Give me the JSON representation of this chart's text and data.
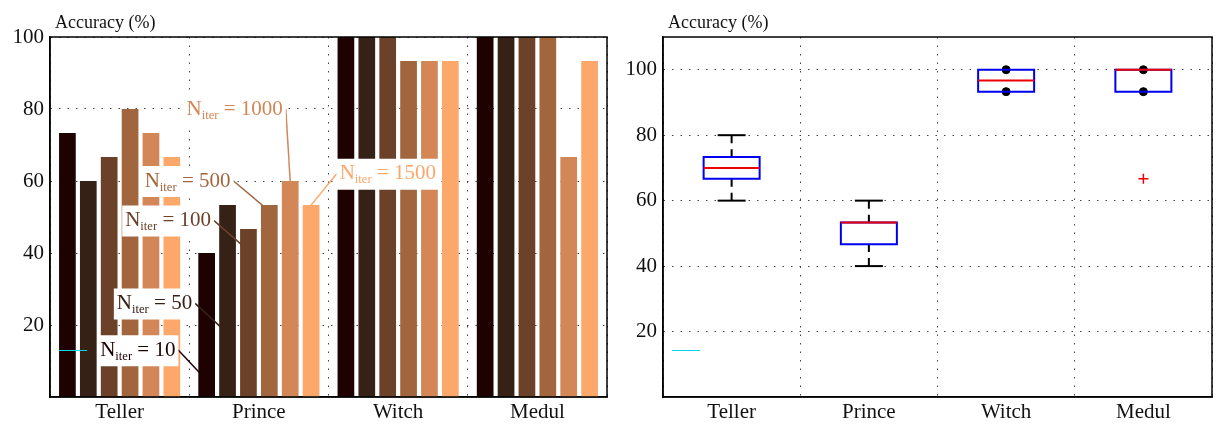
{
  "chart_data": [
    {
      "type": "bar",
      "ylabel": "Accuracy (%)",
      "categories": [
        "Teller",
        "Prince",
        "Witch",
        "Medul"
      ],
      "ylim": [
        0,
        100
      ],
      "yticks": [
        20,
        40,
        60,
        80,
        100
      ],
      "grid": true,
      "legend": false,
      "series": [
        {
          "name": "N$_{iter}$ = 10",
          "color": "#1e0202",
          "values": [
            73.3,
            40,
            100,
            100
          ]
        },
        {
          "name": "N$_{iter}$ = 50",
          "color": "#352116",
          "values": [
            60,
            53.3,
            100,
            100
          ]
        },
        {
          "name": "N$_{iter}$ = 100",
          "color": "#6b412a",
          "values": [
            66.7,
            46.7,
            100,
            100
          ]
        },
        {
          "name": "N$_{iter}$ = 500",
          "color": "#a2663f",
          "values": [
            80,
            53.3,
            93.3,
            100
          ]
        },
        {
          "name": "N$_{iter}$ = 1000",
          "color": "#d38656",
          "values": [
            73.3,
            60,
            93.3,
            66.7
          ]
        },
        {
          "name": "N$_{iter}$ = 1500",
          "color": "#fca86b",
          "values": [
            66.7,
            53.3,
            93.3,
            93.3
          ]
        }
      ]
    },
    {
      "type": "box",
      "ylabel": "Accuracy (%)",
      "categories": [
        "Teller",
        "Prince",
        "Witch",
        "Medul"
      ],
      "ylim": [
        0,
        110
      ],
      "yticks": [
        20,
        40,
        60,
        80,
        100
      ],
      "grid": true,
      "legend": false,
      "boxes": [
        {
          "low": 60,
          "q1": 66.7,
          "median": 70,
          "q3": 73.3,
          "high": 80
        },
        {
          "low": 40,
          "q1": 46.7,
          "median": 53.3,
          "q3": 53.3,
          "high": 60
        },
        {
          "low": 93.3,
          "q1": 93.3,
          "median": 96.7,
          "q3": 100,
          "high": 100
        },
        {
          "low": 93.3,
          "q1": 93.3,
          "median": 100,
          "q3": 100,
          "high": 100,
          "outliers": [
            66.7
          ]
        }
      ],
      "marker": "circle",
      "series": [
        {
          "type": "scatter",
          "color": "#000000",
          "x": [
            "Witch",
            "Witch",
            "Medul",
            "Medul"
          ],
          "values": [
            100,
            93.3,
            100,
            93.3
          ]
        }
      ]
    }
  ]
}
